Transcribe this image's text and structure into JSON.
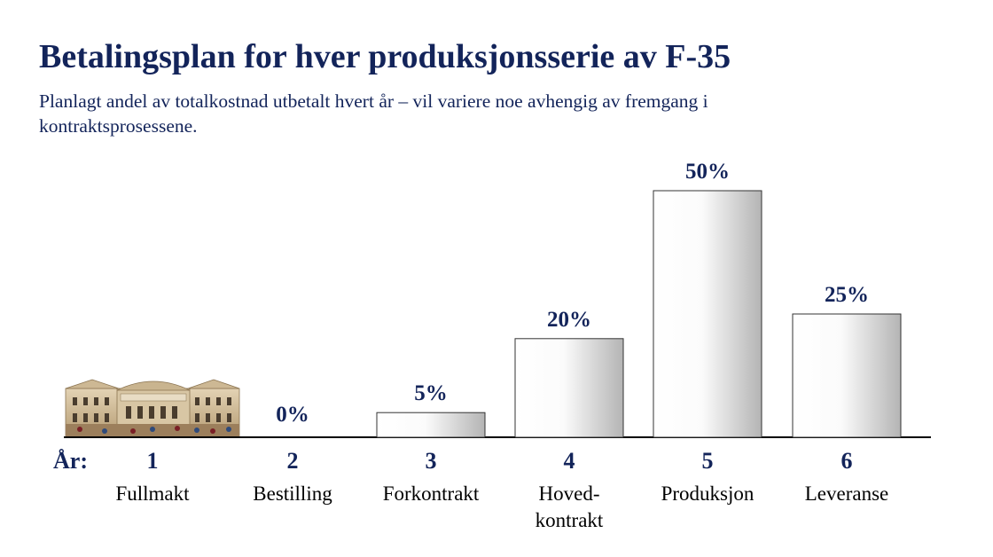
{
  "title": "Betalingsplan for hver produksjonsserie av F-35",
  "subtitle": "Planlagt andel av totalkostnad utbetalt hvert år – vil variere noe avhengig av fremgang i kontraktsprosessene.",
  "year_axis_label": "År:",
  "image": {
    "icon": "parliament-building-image"
  },
  "colors": {
    "title": "#13245a",
    "bar_light": "#ffffff",
    "bar_dark": "#b8b8b8",
    "axis": "#000000"
  },
  "chart_data": {
    "type": "bar",
    "title": "Betalingsplan for hver produksjonsserie av F-35",
    "subtitle": "Planlagt andel av totalkostnad utbetalt hvert år – vil variere noe avhengig av fremgang i kontraktsprosessene.",
    "categories": [
      "1",
      "2",
      "3",
      "4",
      "5",
      "6"
    ],
    "category_names": [
      "Fullmakt",
      "Bestilling",
      "Forkontrakt",
      "Hoved-kontrakt",
      "Produksjon",
      "Leveranse"
    ],
    "values": [
      null,
      0,
      5,
      20,
      50,
      25
    ],
    "data_labels": [
      "",
      "0%",
      "5%",
      "20%",
      "50%",
      "25%"
    ],
    "xlabel": "År:",
    "ylabel": "",
    "ylim": [
      0,
      50
    ],
    "grid": false,
    "legend": "none"
  }
}
